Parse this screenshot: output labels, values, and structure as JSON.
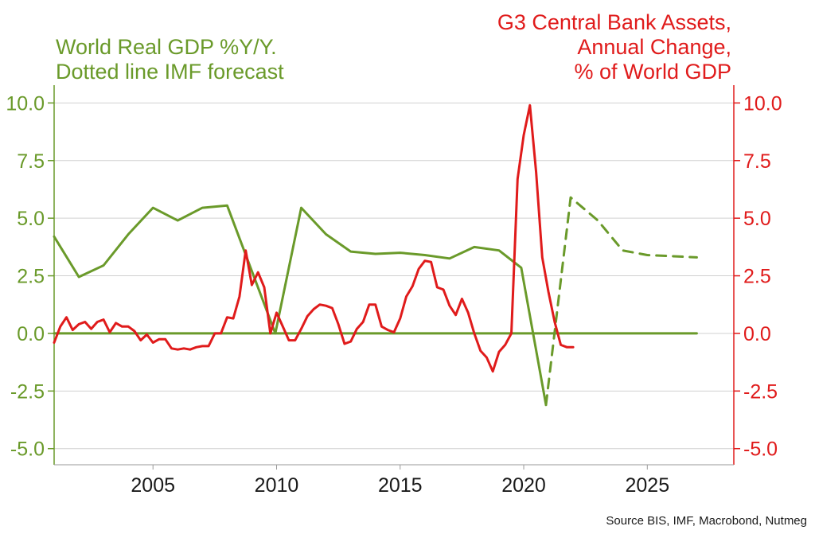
{
  "chart_data": {
    "type": "line",
    "left_title": [
      "World Real GDP %Y/Y.",
      "Dotted line IMF forecast"
    ],
    "right_title": [
      "G3 Central Bank Assets,",
      "Annual Change,",
      "% of World GDP"
    ],
    "source": "Source BIS, IMF, Macrobond, Nutmeg",
    "xlim": [
      2001,
      2028.5
    ],
    "y_left_lim": [
      -5.7,
      10.6
    ],
    "y_right_lim": [
      -5.7,
      10.6
    ],
    "x_ticks": [
      "2005",
      "2010",
      "2015",
      "2020",
      "2025"
    ],
    "y_left_ticks": [
      "10.0",
      "7.5",
      "5.0",
      "2.5",
      "0.0",
      "-2.5",
      "-5.0"
    ],
    "y_right_ticks": [
      "10.0",
      "7.5",
      "5.0",
      "2.5",
      "0.0",
      "-2.5",
      "-5.0"
    ],
    "grid": true,
    "colors": {
      "gdp": "#6a9a2a",
      "cb": "#e01b1b",
      "grid": "#d0d0d0",
      "text": "#1a1a1a"
    },
    "series": [
      {
        "axis": "left",
        "style": "solid",
        "color": "#6a9a2a",
        "x": [
          2001,
          2002,
          2003,
          2004,
          2005,
          2006,
          2007,
          2008,
          2009.95,
          2011,
          2012,
          2013,
          2014,
          2015,
          2016,
          2017,
          2018,
          2019,
          2019.9,
          2020.9
        ],
        "y": [
          4.2,
          2.45,
          2.95,
          4.3,
          5.45,
          4.9,
          5.45,
          5.55,
          0.0,
          5.45,
          4.3,
          3.55,
          3.45,
          3.5,
          3.4,
          3.25,
          3.75,
          3.6,
          2.85,
          -3.1
        ]
      },
      {
        "axis": "left",
        "style": "dashed",
        "color": "#6a9a2a",
        "x": [
          2020.9,
          2021.9,
          2023,
          2024,
          2025,
          2026,
          2027
        ],
        "y": [
          -3.1,
          5.9,
          4.9,
          3.6,
          3.4,
          3.35,
          3.3
        ]
      },
      {
        "axis": "left",
        "style": "solid",
        "color": "#6a9a2a",
        "x": [
          2001,
          2027
        ],
        "y": [
          0.0,
          0.0
        ]
      },
      {
        "axis": "right",
        "style": "solid",
        "color": "#e01b1b",
        "x": [
          2001,
          2001.25,
          2001.5,
          2001.75,
          2002,
          2002.25,
          2002.5,
          2002.75,
          2003,
          2003.25,
          2003.5,
          2003.75,
          2004,
          2004.25,
          2004.5,
          2004.75,
          2005,
          2005.25,
          2005.5,
          2005.75,
          2006,
          2006.25,
          2006.5,
          2006.75,
          2007,
          2007.25,
          2007.5,
          2007.75,
          2008,
          2008.25,
          2008.5,
          2008.75,
          2009,
          2009.25,
          2009.5,
          2009.75,
          2010,
          2010.25,
          2010.5,
          2010.75,
          2011,
          2011.25,
          2011.5,
          2011.75,
          2012,
          2012.25,
          2012.5,
          2012.75,
          2013,
          2013.25,
          2013.5,
          2013.75,
          2014,
          2014.25,
          2014.5,
          2014.75,
          2015,
          2015.25,
          2015.5,
          2015.75,
          2016,
          2016.25,
          2016.5,
          2016.75,
          2017,
          2017.25,
          2017.5,
          2017.75,
          2018,
          2018.25,
          2018.5,
          2018.75,
          2019,
          2019.25,
          2019.5,
          2019.75,
          2020,
          2020.25,
          2020.5,
          2020.75,
          2021,
          2021.25,
          2021.5,
          2021.75,
          2022
        ],
        "y": [
          -0.4,
          0.3,
          0.7,
          0.15,
          0.4,
          0.5,
          0.2,
          0.5,
          0.6,
          0.05,
          0.45,
          0.3,
          0.3,
          0.1,
          -0.3,
          -0.05,
          -0.4,
          -0.25,
          -0.25,
          -0.65,
          -0.7,
          -0.65,
          -0.7,
          -0.6,
          -0.55,
          -0.55,
          0.0,
          0.0,
          0.7,
          0.65,
          1.6,
          3.6,
          2.1,
          2.65,
          2.0,
          0.0,
          0.9,
          0.3,
          -0.3,
          -0.3,
          0.2,
          0.75,
          1.05,
          1.25,
          1.2,
          1.1,
          0.4,
          -0.45,
          -0.35,
          0.2,
          0.5,
          1.25,
          1.25,
          0.3,
          0.15,
          0.05,
          0.65,
          1.6,
          2.05,
          2.8,
          3.15,
          3.1,
          2.0,
          1.9,
          1.2,
          0.8,
          1.5,
          0.9,
          0.0,
          -0.75,
          -1.05,
          -1.65,
          -0.8,
          -0.5,
          0.0,
          6.7,
          8.6,
          9.9,
          7.0,
          3.3,
          1.8,
          0.5,
          -0.5,
          -0.6,
          -0.6
        ]
      }
    ]
  }
}
